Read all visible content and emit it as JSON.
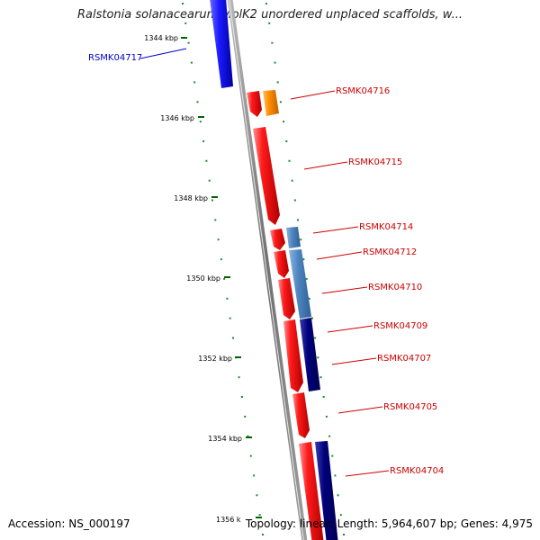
{
  "title": "Ralstonia solanacearum MolK2 unordered unplaced scaffolds, w...",
  "footer": {
    "accession": "Accession: NS_000197",
    "summary": "Topology: linear; Length: 5,964,607 bp; Genes: 4,975"
  },
  "colors": {
    "forward_cds": "#ff0000",
    "reverse_blue": "#1a1aff",
    "orange": "#ff8c00",
    "steel_blue": "#4f86c0",
    "navy": "#000080",
    "tick_green": "#006400",
    "backbone": "#808080",
    "label_red": "#cc0000",
    "label_blue": "#0000cc"
  },
  "ticks": [
    {
      "label": "1344 kbp"
    },
    {
      "label": "1346 kbp"
    },
    {
      "label": "1348 kbp"
    },
    {
      "label": "1350 kbp"
    },
    {
      "label": "1352 kbp"
    },
    {
      "label": "1354 kbp"
    },
    {
      "label": "1356 k"
    }
  ],
  "genes": [
    {
      "name": "RSMK04717",
      "color": "blue"
    },
    {
      "name": "RSMK04716",
      "color": "red"
    },
    {
      "name": "RSMK04715",
      "color": "red"
    },
    {
      "name": "RSMK04714",
      "color": "red"
    },
    {
      "name": "RSMK04712",
      "color": "red"
    },
    {
      "name": "RSMK04710",
      "color": "red"
    },
    {
      "name": "RSMK04709",
      "color": "red"
    },
    {
      "name": "RSMK04707",
      "color": "red"
    },
    {
      "name": "RSMK04705",
      "color": "red"
    },
    {
      "name": "RSMK04704",
      "color": "red"
    }
  ]
}
